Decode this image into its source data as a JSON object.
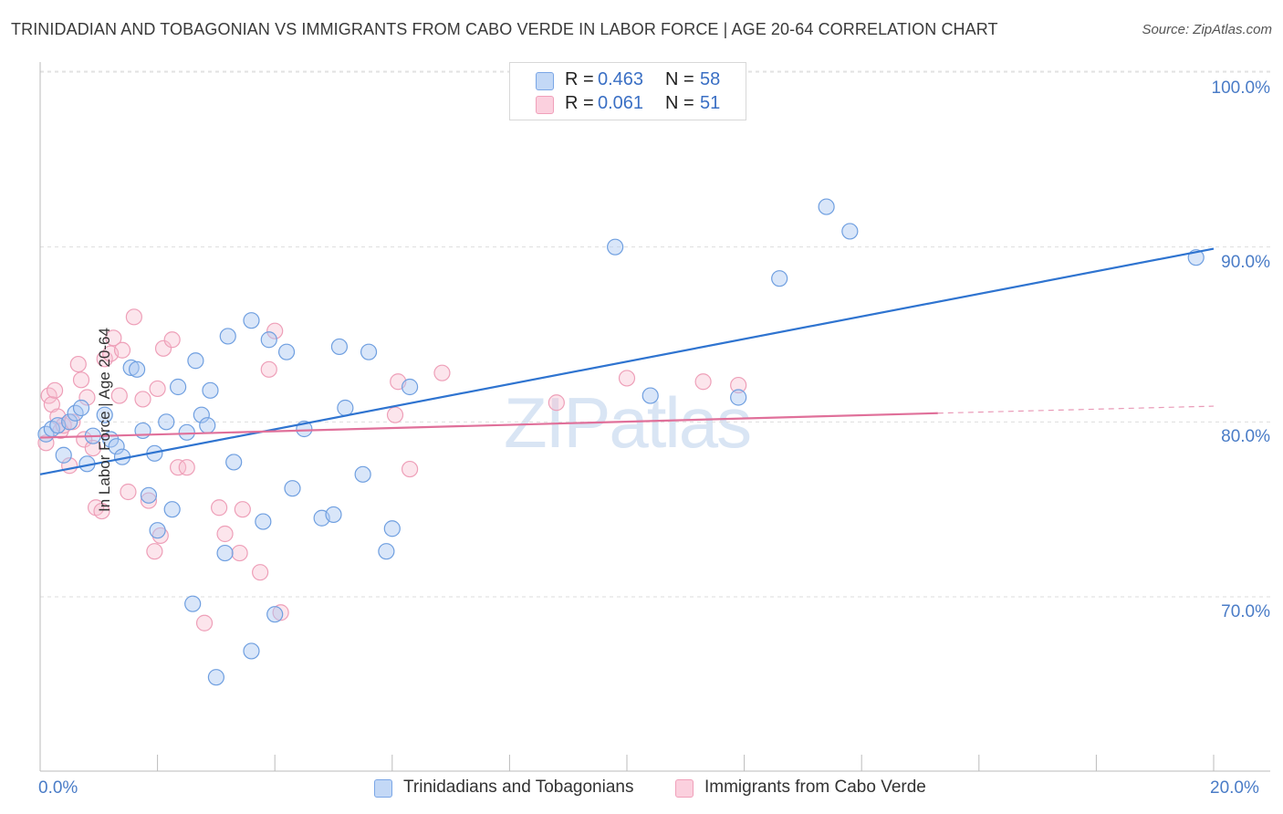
{
  "header": {
    "title": "TRINIDADIAN AND TOBAGONIAN VS IMMIGRANTS FROM CABO VERDE IN LABOR FORCE | AGE 20-64 CORRELATION CHART",
    "source": "Source: ZipAtlas.com"
  },
  "watermark": {
    "zip": "ZIP",
    "atlas": "atlas"
  },
  "legend": {
    "r_label": "R =",
    "n_label": "N =",
    "rows": [
      {
        "r": "0.463",
        "n": "58",
        "color": "#a9c8f2"
      },
      {
        "r": "0.061",
        "n": "51",
        "color": "#f5b8cb"
      }
    ]
  },
  "bottom_legend": {
    "series_a": "Trinidadians and Tobagonians",
    "series_b": "Immigrants from Cabo Verde"
  },
  "chart_data": {
    "type": "scatter",
    "title": "TRINIDADIAN AND TOBAGONIAN VS IMMIGRANTS FROM CABO VERDE IN LABOR FORCE | AGE 20-64 CORRELATION CHART",
    "xlabel": "",
    "ylabel": "In Labor Force | Age 20-64",
    "xlim": [
      0,
      20
    ],
    "ylim": [
      62,
      103
    ],
    "x_tick_labels": [
      "0.0%",
      "20.0%"
    ],
    "y_ticks": [
      70,
      80,
      90,
      100
    ],
    "y_tick_labels": [
      "70.0%",
      "80.0%",
      "90.0%",
      "100.0%"
    ],
    "grid": "horizontal dashed",
    "legend_position": "top-center",
    "colors": {
      "series_a": "#7aa6e6",
      "series_b": "#f0a0ba",
      "trend_a": "#2f74d0",
      "trend_b": "#e0709a"
    },
    "series": [
      {
        "name": "Trinidadians and Tobagonians",
        "R": 0.463,
        "N": 58,
        "trend": {
          "x": [
            0.0,
            20.0
          ],
          "y": [
            77.0,
            89.9
          ]
        },
        "points": [
          [
            0.1,
            79.3
          ],
          [
            0.2,
            79.6
          ],
          [
            0.3,
            79.8
          ],
          [
            0.4,
            78.1
          ],
          [
            0.5,
            80.0
          ],
          [
            0.6,
            80.5
          ],
          [
            0.7,
            80.8
          ],
          [
            0.8,
            77.6
          ],
          [
            0.9,
            79.2
          ],
          [
            1.1,
            80.4
          ],
          [
            1.2,
            79.0
          ],
          [
            1.3,
            78.6
          ],
          [
            1.4,
            78.0
          ],
          [
            1.55,
            83.1
          ],
          [
            1.65,
            83.0
          ],
          [
            1.75,
            79.5
          ],
          [
            1.85,
            75.8
          ],
          [
            1.95,
            78.2
          ],
          [
            2.0,
            73.8
          ],
          [
            2.15,
            80.0
          ],
          [
            2.25,
            75.0
          ],
          [
            2.35,
            82.0
          ],
          [
            2.5,
            79.4
          ],
          [
            2.6,
            69.6
          ],
          [
            2.65,
            83.5
          ],
          [
            2.75,
            80.4
          ],
          [
            2.85,
            79.8
          ],
          [
            2.9,
            81.8
          ],
          [
            3.0,
            65.4
          ],
          [
            3.15,
            72.5
          ],
          [
            3.2,
            84.9
          ],
          [
            3.3,
            77.7
          ],
          [
            3.6,
            66.9
          ],
          [
            3.6,
            85.8
          ],
          [
            3.8,
            74.3
          ],
          [
            3.9,
            84.7
          ],
          [
            4.0,
            69.0
          ],
          [
            4.2,
            84.0
          ],
          [
            4.3,
            76.2
          ],
          [
            4.5,
            79.6
          ],
          [
            4.8,
            74.5
          ],
          [
            5.0,
            74.7
          ],
          [
            5.1,
            84.3
          ],
          [
            5.2,
            80.8
          ],
          [
            5.5,
            77.0
          ],
          [
            5.6,
            84.0
          ],
          [
            5.9,
            72.6
          ],
          [
            6.0,
            73.9
          ],
          [
            6.3,
            82.0
          ],
          [
            9.8,
            90.0
          ],
          [
            10.4,
            81.5
          ],
          [
            11.9,
            81.4
          ],
          [
            12.6,
            88.2
          ],
          [
            13.4,
            92.3
          ],
          [
            13.8,
            90.9
          ],
          [
            19.7,
            89.4
          ]
        ]
      },
      {
        "name": "Immigrants from Cabo Verde",
        "R": 0.061,
        "N": 51,
        "trend": {
          "x": [
            0.0,
            15.3
          ],
          "y": [
            79.1,
            80.5
          ]
        },
        "trend_dashed": {
          "x": [
            15.3,
            20.0
          ],
          "y": [
            80.5,
            80.9
          ]
        },
        "points": [
          [
            0.1,
            78.8
          ],
          [
            0.15,
            81.5
          ],
          [
            0.2,
            81.0
          ],
          [
            0.25,
            81.8
          ],
          [
            0.3,
            80.3
          ],
          [
            0.35,
            79.5
          ],
          [
            0.4,
            79.8
          ],
          [
            0.5,
            77.5
          ],
          [
            0.55,
            80.0
          ],
          [
            0.65,
            83.3
          ],
          [
            0.7,
            82.4
          ],
          [
            0.75,
            79.0
          ],
          [
            0.8,
            81.4
          ],
          [
            0.9,
            78.5
          ],
          [
            0.95,
            75.1
          ],
          [
            1.05,
            74.9
          ],
          [
            1.1,
            83.6
          ],
          [
            1.2,
            83.9
          ],
          [
            1.25,
            84.8
          ],
          [
            1.35,
            81.5
          ],
          [
            1.4,
            84.1
          ],
          [
            1.5,
            76.0
          ],
          [
            1.6,
            86.0
          ],
          [
            1.75,
            81.3
          ],
          [
            1.85,
            75.5
          ],
          [
            1.95,
            72.6
          ],
          [
            2.0,
            81.9
          ],
          [
            2.05,
            73.5
          ],
          [
            2.1,
            84.2
          ],
          [
            2.25,
            84.7
          ],
          [
            2.35,
            77.4
          ],
          [
            2.5,
            77.4
          ],
          [
            2.8,
            68.5
          ],
          [
            3.05,
            75.1
          ],
          [
            3.15,
            73.6
          ],
          [
            3.4,
            72.5
          ],
          [
            3.45,
            75.0
          ],
          [
            3.75,
            71.4
          ],
          [
            3.9,
            83.0
          ],
          [
            4.0,
            85.2
          ],
          [
            4.1,
            69.1
          ],
          [
            6.05,
            80.4
          ],
          [
            6.1,
            82.3
          ],
          [
            6.3,
            77.3
          ],
          [
            6.85,
            82.8
          ],
          [
            8.8,
            81.1
          ],
          [
            10.0,
            82.5
          ],
          [
            11.3,
            82.3
          ],
          [
            11.9,
            82.1
          ]
        ]
      }
    ]
  }
}
